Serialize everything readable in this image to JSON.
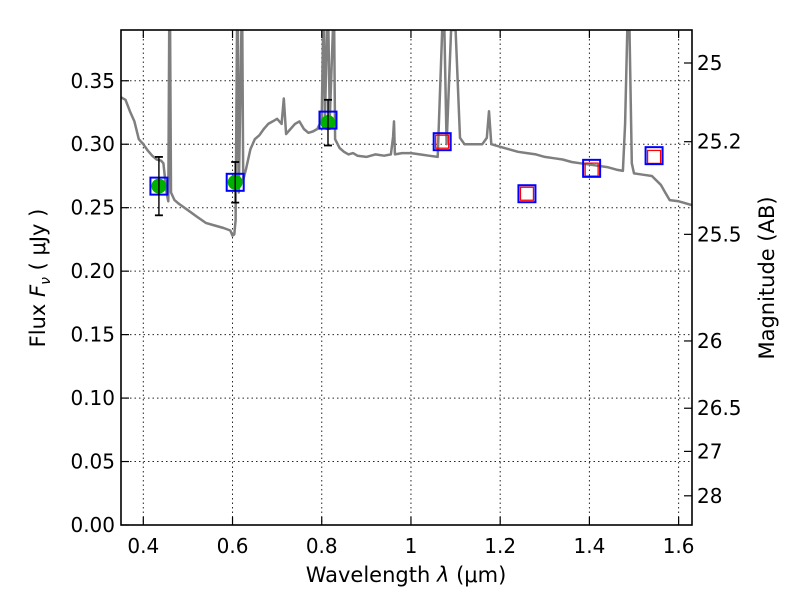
{
  "chart_data": {
    "type": "scatter",
    "xlabel": "Wavelength",
    "xlabel_symbol": "λ",
    "xlabel_unit": "(μm)",
    "ylabel": "Flux",
    "ylabel_symbol": "F",
    "ylabel_subscript": "ν",
    "ylabel_unit": "( μJy )",
    "y2label": "Magnitude (AB)",
    "xlim": [
      0.35,
      1.63
    ],
    "ylim": [
      0.0,
      0.39
    ],
    "grid": true,
    "x_ticks": [
      {
        "value": 0.4,
        "label": "0.4"
      },
      {
        "value": 0.6,
        "label": "0.6"
      },
      {
        "value": 0.8,
        "label": "0.8"
      },
      {
        "value": 1.0,
        "label": "1"
      },
      {
        "value": 1.2,
        "label": "1.2"
      },
      {
        "value": 1.4,
        "label": "1.4"
      },
      {
        "value": 1.6,
        "label": "1.6"
      }
    ],
    "y_ticks": [
      {
        "value": 0.0,
        "label": "0.00"
      },
      {
        "value": 0.05,
        "label": "0.05"
      },
      {
        "value": 0.1,
        "label": "0.10"
      },
      {
        "value": 0.15,
        "label": "0.15"
      },
      {
        "value": 0.2,
        "label": "0.20"
      },
      {
        "value": 0.25,
        "label": "0.25"
      },
      {
        "value": 0.3,
        "label": "0.30"
      },
      {
        "value": 0.35,
        "label": "0.35"
      }
    ],
    "y2_ticks": [
      {
        "flux": 0.364,
        "label": "25"
      },
      {
        "flux": 0.302,
        "label": "25.2"
      },
      {
        "flux": 0.229,
        "label": "25.5"
      },
      {
        "flux": 0.145,
        "label": "26"
      },
      {
        "flux": 0.092,
        "label": "26.5"
      },
      {
        "flux": 0.058,
        "label": "27"
      },
      {
        "flux": 0.023,
        "label": "28"
      }
    ],
    "colors": {
      "template": "#7f7f7f",
      "detection": "#00b000",
      "model_box": "#0000ff",
      "upper_limit_box": "#ff0000",
      "errorbar": "#000000"
    },
    "detections": [
      {
        "x": 0.435,
        "y": 0.267,
        "yerr": 0.023
      },
      {
        "x": 0.606,
        "y": 0.27,
        "yerr": 0.016
      },
      {
        "x": 0.814,
        "y": 0.317,
        "yerr": 0.018
      }
    ],
    "upper_limits": [
      {
        "x": 1.07,
        "y": 0.302
      },
      {
        "x": 1.26,
        "y": 0.261
      },
      {
        "x": 1.405,
        "y": 0.28
      },
      {
        "x": 1.545,
        "y": 0.29
      }
    ],
    "model_points": [
      {
        "x": 0.435,
        "y": 0.267
      },
      {
        "x": 0.606,
        "y": 0.27
      },
      {
        "x": 0.814,
        "y": 0.319
      },
      {
        "x": 1.07,
        "y": 0.302
      },
      {
        "x": 1.26,
        "y": 0.261
      },
      {
        "x": 1.405,
        "y": 0.281
      },
      {
        "x": 1.545,
        "y": 0.291
      }
    ],
    "template_spectrum": [
      [
        0.35,
        0.337
      ],
      [
        0.36,
        0.335
      ],
      [
        0.37,
        0.326
      ],
      [
        0.38,
        0.318
      ],
      [
        0.39,
        0.304
      ],
      [
        0.4,
        0.3
      ],
      [
        0.41,
        0.295
      ],
      [
        0.42,
        0.291
      ],
      [
        0.43,
        0.288
      ],
      [
        0.44,
        0.287
      ],
      [
        0.445,
        0.285
      ],
      [
        0.452,
        0.262
      ],
      [
        0.456,
        0.255
      ],
      [
        0.458,
        0.39
      ],
      [
        0.46,
        0.39
      ],
      [
        0.462,
        0.262
      ],
      [
        0.47,
        0.256
      ],
      [
        0.48,
        0.253
      ],
      [
        0.5,
        0.248
      ],
      [
        0.52,
        0.243
      ],
      [
        0.54,
        0.238
      ],
      [
        0.56,
        0.236
      ],
      [
        0.58,
        0.234
      ],
      [
        0.595,
        0.232
      ],
      [
        0.6,
        0.228
      ],
      [
        0.604,
        0.229
      ],
      [
        0.607,
        0.24
      ],
      [
        0.61,
        0.39
      ],
      [
        0.612,
        0.39
      ],
      [
        0.614,
        0.262
      ],
      [
        0.62,
        0.39
      ],
      [
        0.622,
        0.39
      ],
      [
        0.624,
        0.272
      ],
      [
        0.63,
        0.28
      ],
      [
        0.64,
        0.296
      ],
      [
        0.645,
        0.3
      ],
      [
        0.65,
        0.304
      ],
      [
        0.66,
        0.307
      ],
      [
        0.67,
        0.312
      ],
      [
        0.68,
        0.316
      ],
      [
        0.69,
        0.318
      ],
      [
        0.7,
        0.32
      ],
      [
        0.71,
        0.316
      ],
      [
        0.715,
        0.336
      ],
      [
        0.72,
        0.308
      ],
      [
        0.73,
        0.312
      ],
      [
        0.74,
        0.316
      ],
      [
        0.75,
        0.318
      ],
      [
        0.76,
        0.312
      ],
      [
        0.77,
        0.309
      ],
      [
        0.78,
        0.31
      ],
      [
        0.79,
        0.312
      ],
      [
        0.8,
        0.319
      ],
      [
        0.803,
        0.39
      ],
      [
        0.805,
        0.39
      ],
      [
        0.807,
        0.32
      ],
      [
        0.812,
        0.39
      ],
      [
        0.815,
        0.39
      ],
      [
        0.818,
        0.32
      ],
      [
        0.825,
        0.39
      ],
      [
        0.828,
        0.39
      ],
      [
        0.83,
        0.304
      ],
      [
        0.84,
        0.297
      ],
      [
        0.85,
        0.294
      ],
      [
        0.86,
        0.292
      ],
      [
        0.87,
        0.293
      ],
      [
        0.88,
        0.291
      ],
      [
        0.9,
        0.29
      ],
      [
        0.92,
        0.292
      ],
      [
        0.94,
        0.291
      ],
      [
        0.955,
        0.292
      ],
      [
        0.96,
        0.306
      ],
      [
        0.962,
        0.318
      ],
      [
        0.964,
        0.292
      ],
      [
        0.98,
        0.293
      ],
      [
        1.0,
        0.293
      ],
      [
        1.02,
        0.292
      ],
      [
        1.04,
        0.291
      ],
      [
        1.06,
        0.29
      ],
      [
        1.07,
        0.39
      ],
      [
        1.075,
        0.39
      ],
      [
        1.08,
        0.3
      ],
      [
        1.09,
        0.39
      ],
      [
        1.1,
        0.39
      ],
      [
        1.11,
        0.305
      ],
      [
        1.12,
        0.3
      ],
      [
        1.14,
        0.3
      ],
      [
        1.16,
        0.3
      ],
      [
        1.17,
        0.305
      ],
      [
        1.175,
        0.326
      ],
      [
        1.18,
        0.3
      ],
      [
        1.2,
        0.298
      ],
      [
        1.22,
        0.296
      ],
      [
        1.24,
        0.294
      ],
      [
        1.26,
        0.293
      ],
      [
        1.28,
        0.292
      ],
      [
        1.3,
        0.29
      ],
      [
        1.32,
        0.289
      ],
      [
        1.34,
        0.288
      ],
      [
        1.36,
        0.286
      ],
      [
        1.38,
        0.285
      ],
      [
        1.4,
        0.284
      ],
      [
        1.42,
        0.283
      ],
      [
        1.44,
        0.282
      ],
      [
        1.46,
        0.28
      ],
      [
        1.475,
        0.279
      ],
      [
        1.48,
        0.316
      ],
      [
        1.485,
        0.39
      ],
      [
        1.49,
        0.39
      ],
      [
        1.495,
        0.285
      ],
      [
        1.5,
        0.277
      ],
      [
        1.52,
        0.276
      ],
      [
        1.54,
        0.275
      ],
      [
        1.56,
        0.268
      ],
      [
        1.57,
        0.262
      ],
      [
        1.58,
        0.256
      ],
      [
        1.6,
        0.255
      ],
      [
        1.61,
        0.254
      ],
      [
        1.63,
        0.252
      ]
    ]
  }
}
